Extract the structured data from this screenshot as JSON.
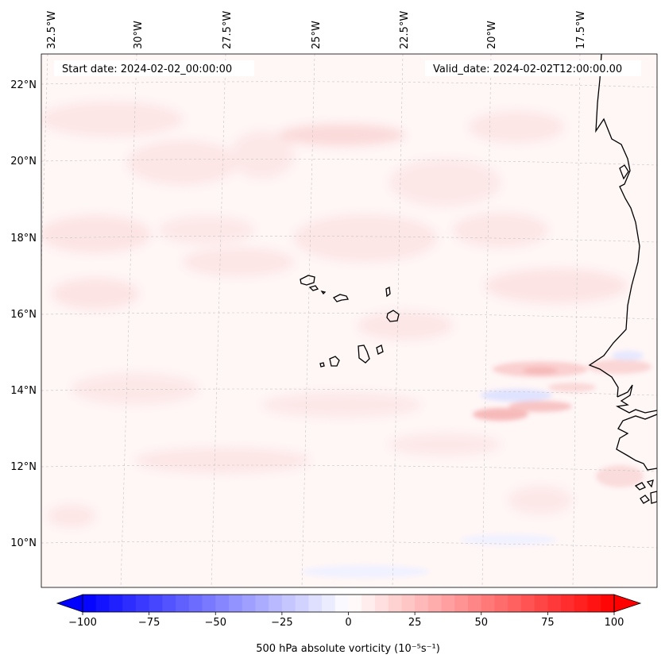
{
  "map": {
    "start_date_text": "Start date: 2024-02-02_00:00:00",
    "valid_date_text": "Valid_date: 2024-02-02T12:00:00.00",
    "lon_labels": [
      "32.5°W",
      "30°W",
      "27.5°W",
      "25°W",
      "22.5°W",
      "20°W",
      "17.5°W"
    ],
    "lat_labels": [
      "22°N",
      "20°N",
      "18°N",
      "16°N",
      "14°N",
      "12°N",
      "10°N"
    ],
    "features": [
      "Cabo Verde islands",
      "West African coastline"
    ],
    "colors": {
      "background_field": "#fff6f6",
      "light_positive": "#fde4e4",
      "moderate_positive": "#f9c6c6",
      "light_negative": "#e4e6ff",
      "coast": "#000000",
      "grid": "#b8b8b8"
    }
  },
  "colorbar": {
    "label": "500 hPa absolute vorticity (10⁻⁵s⁻¹)",
    "ticks": [
      "−100",
      "−75",
      "−50",
      "−25",
      "0",
      "25",
      "50",
      "75",
      "100"
    ],
    "min": -100,
    "max": 100,
    "colormap": "bwr",
    "extend": "both"
  }
}
